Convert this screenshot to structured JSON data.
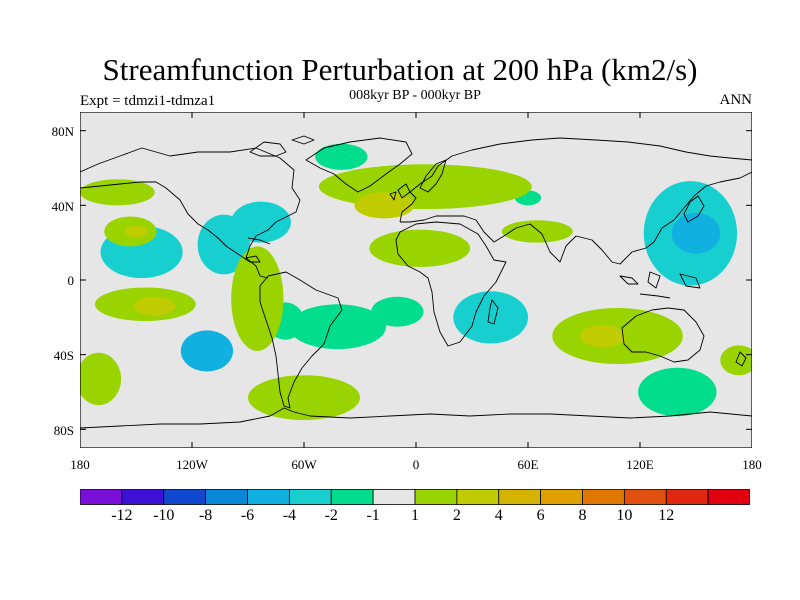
{
  "title": "Streamfunction Perturbation at 200 hPa (km2/s)",
  "subtitle": "008kyr BP - 000kyr BP",
  "left_label": "Expt = tdmzi1-tdmza1",
  "right_label": "ANN",
  "chart_data": {
    "type": "filled-contour map",
    "projection": "cylindrical equidistant",
    "xlim": [
      -180,
      180
    ],
    "ylim": [
      -90,
      90
    ],
    "x_ticks": [
      {
        "label": "180",
        "lon": -180
      },
      {
        "label": "120W",
        "lon": -120
      },
      {
        "label": "60W",
        "lon": -60
      },
      {
        "label": "0",
        "lon": 0
      },
      {
        "label": "60E",
        "lon": 60
      },
      {
        "label": "120E",
        "lon": 120
      },
      {
        "label": "180",
        "lon": 180
      }
    ],
    "y_ticks": [
      {
        "label": "80N",
        "lat": 80
      },
      {
        "label": "40N",
        "lat": 40
      },
      {
        "label": "0",
        "lat": 0
      },
      {
        "label": "40S",
        "lat": -40
      },
      {
        "label": "80S",
        "lat": -80
      }
    ],
    "colorbar": {
      "colors": [
        "#7a10d8",
        "#3d10d8",
        "#1048d0",
        "#0a88d8",
        "#10b0e0",
        "#18cfd0",
        "#00dd8c",
        "#e6e6e6",
        "#99d400",
        "#c0cc00",
        "#d4b400",
        "#dfa000",
        "#e07800",
        "#e05010",
        "#e02810",
        "#e00010"
      ],
      "labels": [
        "-12",
        "-10",
        "-8",
        "-6",
        "-4",
        "-2",
        "-1",
        "1",
        "2",
        "4",
        "6",
        "8",
        "10",
        "12"
      ]
    },
    "anomalies": [
      {
        "lon": -147,
        "lat": 15,
        "rx": 22,
        "ry": 14,
        "value": -2.4
      },
      {
        "lon": -112,
        "lat": -38,
        "rx": 14,
        "ry": 11,
        "value": -4.2
      },
      {
        "lon": -112,
        "lat": -38,
        "rx": 10,
        "ry": 7,
        "value": -4.5
      },
      {
        "lon": -103,
        "lat": 19,
        "rx": 14,
        "ry": 16,
        "value": -2.3
      },
      {
        "lon": -83,
        "lat": 31,
        "rx": 16,
        "ry": 11,
        "value": -2.4
      },
      {
        "lon": -70,
        "lat": -22,
        "rx": 10,
        "ry": 10,
        "value": -1.5
      },
      {
        "lon": -42,
        "lat": -25,
        "rx": 26,
        "ry": 12,
        "value": -1.5
      },
      {
        "lon": -10,
        "lat": -17,
        "rx": 14,
        "ry": 8,
        "value": -1.5
      },
      {
        "lon": -40,
        "lat": 66,
        "rx": 14,
        "ry": 7,
        "value": -1.5
      },
      {
        "lon": 40,
        "lat": -20,
        "rx": 20,
        "ry": 14,
        "value": -2.5
      },
      {
        "lon": 32,
        "lat": -22,
        "rx": 10,
        "ry": 8,
        "value": -2.8
      },
      {
        "lon": 50,
        "lat": -22,
        "rx": 8,
        "ry": 7,
        "value": -2.8
      },
      {
        "lon": 60,
        "lat": 44,
        "rx": 7,
        "ry": 4,
        "value": -1.5
      },
      {
        "lon": 147,
        "lat": 25,
        "rx": 25,
        "ry": 28,
        "value": -2.4
      },
      {
        "lon": 150,
        "lat": 25,
        "rx": 13,
        "ry": 11,
        "value": -4.5
      },
      {
        "lon": 140,
        "lat": -60,
        "rx": 21,
        "ry": 13,
        "value": -1.5
      },
      {
        "lon": -153,
        "lat": 26,
        "rx": 14,
        "ry": 8,
        "value": 1.5
      },
      {
        "lon": -150,
        "lat": 26,
        "rx": 6,
        "ry": 3,
        "value": 2.4
      },
      {
        "lon": -170,
        "lat": -53,
        "rx": 12,
        "ry": 14,
        "value": 1.5
      },
      {
        "lon": -160,
        "lat": 47,
        "rx": 20,
        "ry": 7,
        "value": 1.5
      },
      {
        "lon": -145,
        "lat": -13,
        "rx": 27,
        "ry": 9,
        "value": 1.5
      },
      {
        "lon": -140,
        "lat": -14,
        "rx": 11,
        "ry": 5,
        "value": 2.4
      },
      {
        "lon": -85,
        "lat": -10,
        "rx": 14,
        "ry": 28,
        "value": 1.5
      },
      {
        "lon": -60,
        "lat": -63,
        "rx": 30,
        "ry": 12,
        "value": 1.5
      },
      {
        "lon": 5,
        "lat": 50,
        "rx": 57,
        "ry": 12,
        "value": 1.5
      },
      {
        "lon": -17,
        "lat": 40,
        "rx": 16,
        "ry": 7,
        "value": 2.4
      },
      {
        "lon": 2,
        "lat": 17,
        "rx": 27,
        "ry": 10,
        "value": 1.5
      },
      {
        "lon": 65,
        "lat": 26,
        "rx": 19,
        "ry": 6,
        "value": 1.5
      },
      {
        "lon": 108,
        "lat": -30,
        "rx": 35,
        "ry": 15,
        "value": 1.5
      },
      {
        "lon": 100,
        "lat": -30,
        "rx": 12,
        "ry": 6,
        "value": 2.4
      },
      {
        "lon": 173,
        "lat": -43,
        "rx": 10,
        "ry": 8,
        "value": 1.5
      }
    ]
  }
}
